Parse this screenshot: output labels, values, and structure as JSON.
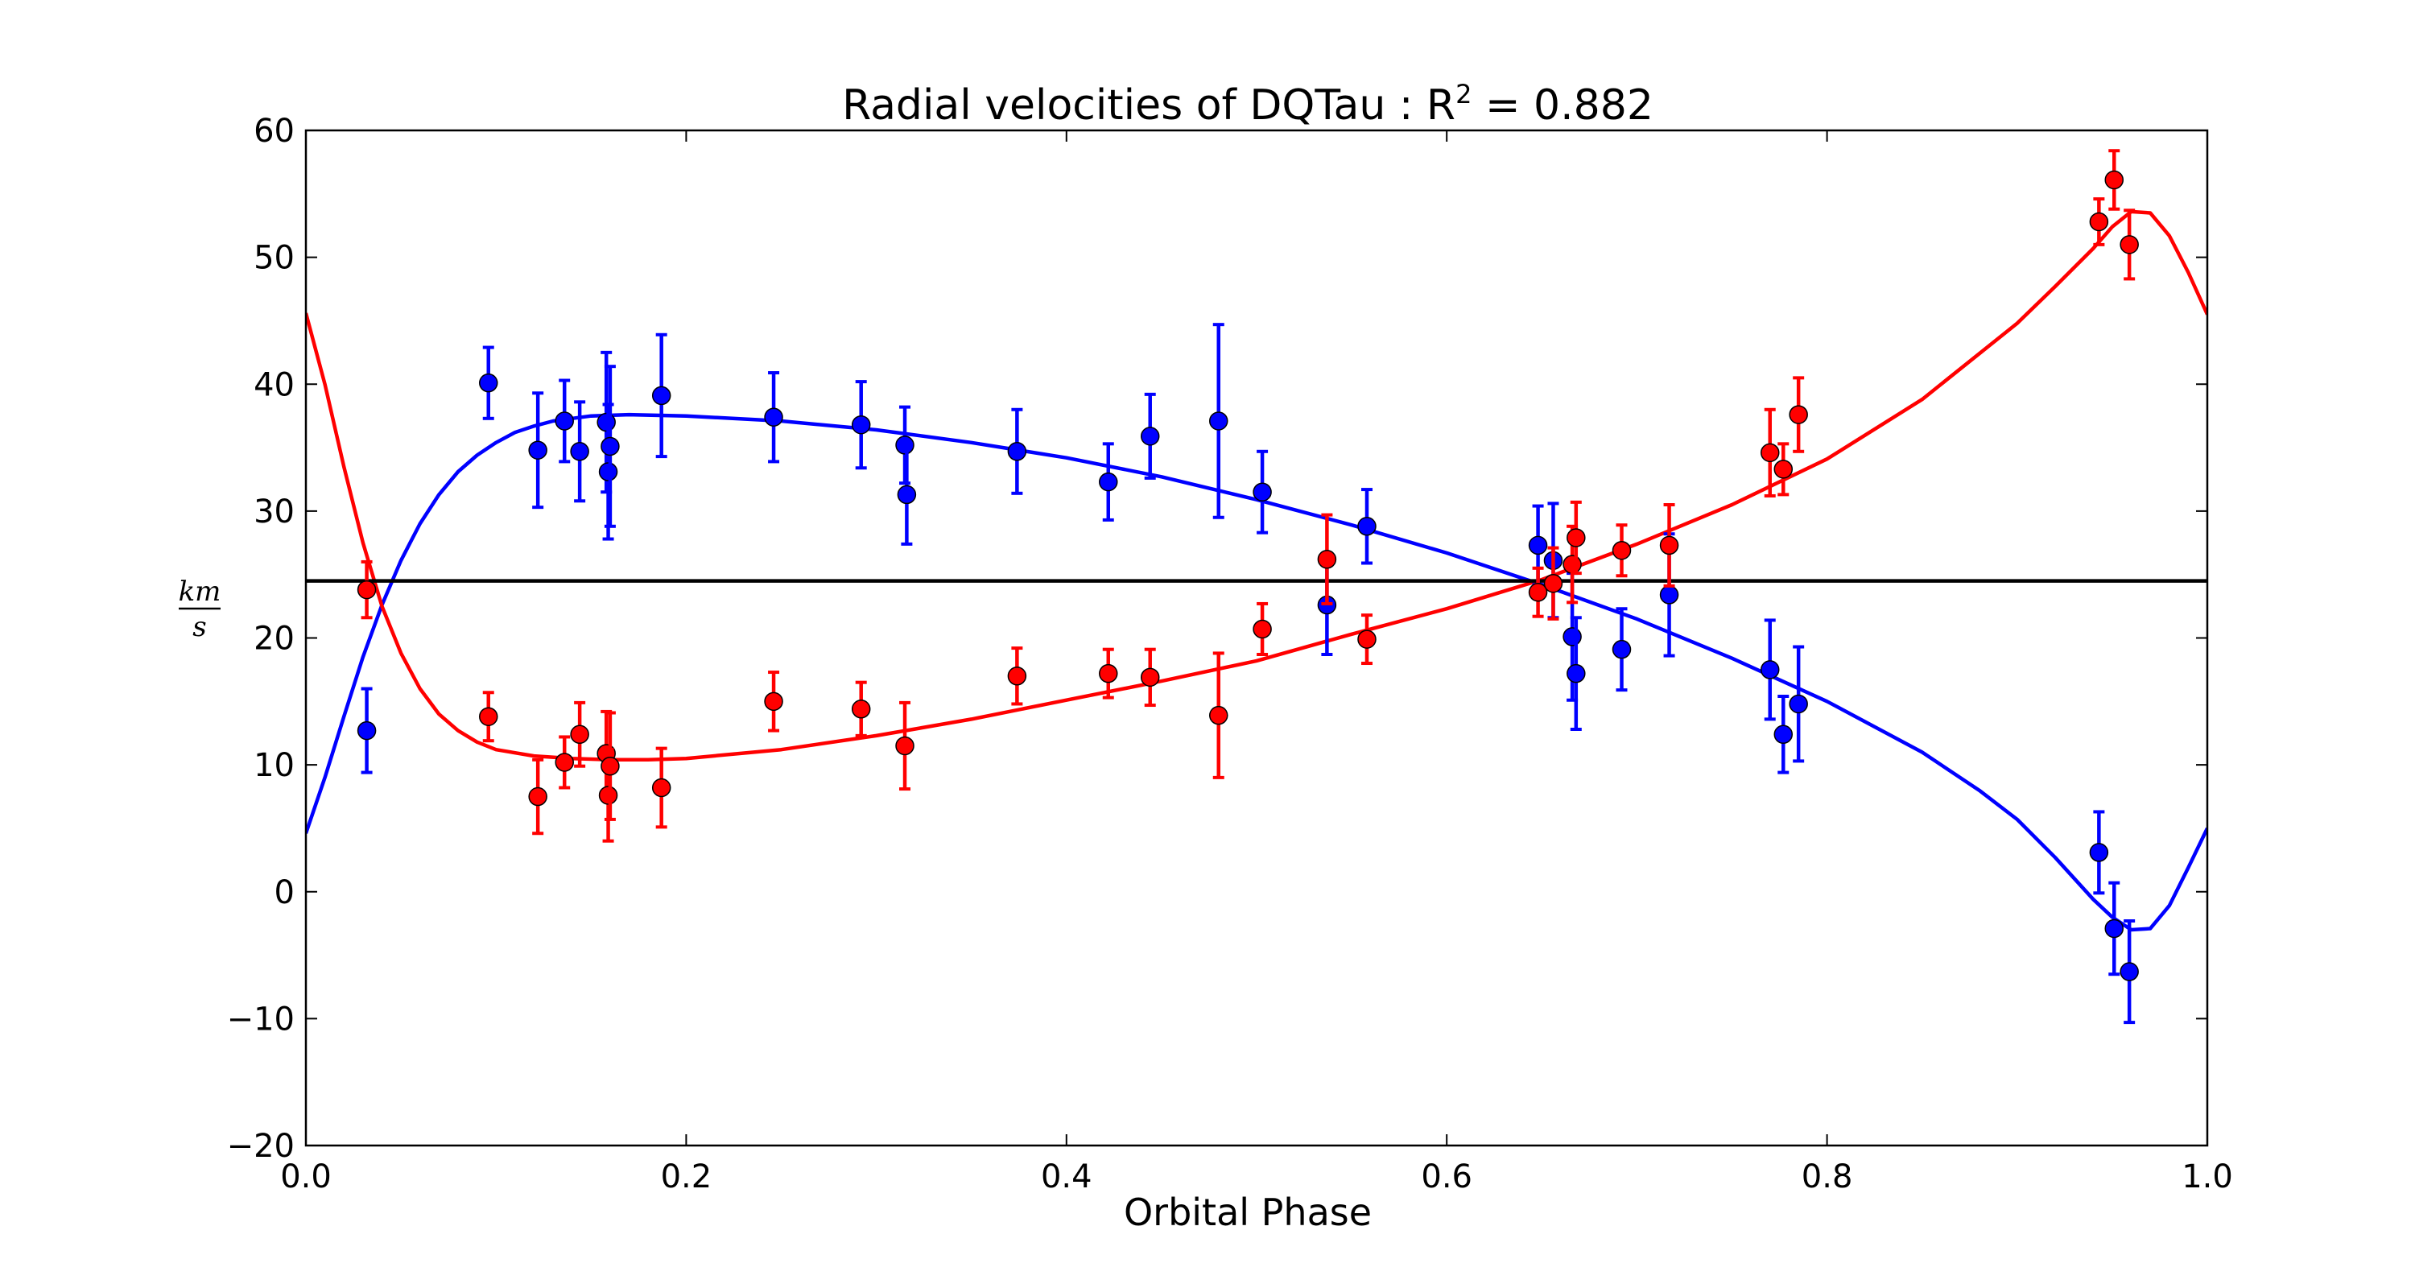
{
  "chart_data": {
    "type": "scatter",
    "title": "Radial velocities of DQTau : R",
    "title_superscript": "2",
    "title_value": " = 0.882",
    "xlabel": "Orbital Phase",
    "ylabel_numerator": "km",
    "ylabel_denominator": "s",
    "xlim": [
      0.0,
      1.0
    ],
    "ylim": [
      -20,
      60
    ],
    "x_ticks": [
      0.0,
      0.2,
      0.4,
      0.6,
      0.8,
      1.0
    ],
    "x_tick_labels": [
      "0.0",
      "0.2",
      "0.4",
      "0.6",
      "0.8",
      "1.0"
    ],
    "y_ticks": [
      -20,
      -10,
      0,
      10,
      20,
      30,
      40,
      50,
      60
    ],
    "y_tick_labels": [
      "−20",
      "−10",
      "0",
      "10",
      "20",
      "30",
      "40",
      "50",
      "60"
    ],
    "grid": false,
    "systemic_velocity": 24.5,
    "series": [
      {
        "color": "#0000ff",
        "points": [
          {
            "x": 0.032,
            "y": 12.7,
            "err": 3.3
          },
          {
            "x": 0.096,
            "y": 40.1,
            "err": 2.8
          },
          {
            "x": 0.122,
            "y": 34.8,
            "err": 4.5
          },
          {
            "x": 0.136,
            "y": 37.1,
            "err": 3.2
          },
          {
            "x": 0.144,
            "y": 34.7,
            "err": 3.9
          },
          {
            "x": 0.158,
            "y": 37.0,
            "err": 5.5
          },
          {
            "x": 0.159,
            "y": 33.1,
            "err": 5.3
          },
          {
            "x": 0.16,
            "y": 35.1,
            "err": 6.3
          },
          {
            "x": 0.187,
            "y": 39.1,
            "err": 4.8
          },
          {
            "x": 0.246,
            "y": 37.4,
            "err": 3.5
          },
          {
            "x": 0.292,
            "y": 36.8,
            "err": 3.4
          },
          {
            "x": 0.315,
            "y": 35.2,
            "err": 3.0
          },
          {
            "x": 0.316,
            "y": 31.3,
            "err": 3.9
          },
          {
            "x": 0.374,
            "y": 34.7,
            "err": 3.3
          },
          {
            "x": 0.422,
            "y": 32.3,
            "err": 3.0
          },
          {
            "x": 0.444,
            "y": 35.9,
            "err": 3.3
          },
          {
            "x": 0.48,
            "y": 37.1,
            "err": 7.6
          },
          {
            "x": 0.503,
            "y": 31.5,
            "err": 3.2
          },
          {
            "x": 0.537,
            "y": 22.6,
            "err": 3.9
          },
          {
            "x": 0.558,
            "y": 28.8,
            "err": 2.9
          },
          {
            "x": 0.648,
            "y": 27.3,
            "err": 3.1
          },
          {
            "x": 0.656,
            "y": 26.1,
            "err": 4.5
          },
          {
            "x": 0.666,
            "y": 20.1,
            "err": 5.0
          },
          {
            "x": 0.668,
            "y": 17.2,
            "err": 4.4
          },
          {
            "x": 0.692,
            "y": 19.1,
            "err": 3.2
          },
          {
            "x": 0.717,
            "y": 23.4,
            "err": 4.8
          },
          {
            "x": 0.77,
            "y": 17.5,
            "err": 3.9
          },
          {
            "x": 0.777,
            "y": 12.4,
            "err": 3.0
          },
          {
            "x": 0.785,
            "y": 14.8,
            "err": 4.5
          },
          {
            "x": 0.943,
            "y": 3.1,
            "err": 3.2
          },
          {
            "x": 0.951,
            "y": -2.9,
            "err": 3.6
          },
          {
            "x": 0.959,
            "y": -6.3,
            "err": 4.0
          }
        ]
      },
      {
        "color": "#ff0000",
        "points": [
          {
            "x": 0.032,
            "y": 23.8,
            "err": 2.2
          },
          {
            "x": 0.096,
            "y": 13.8,
            "err": 1.9
          },
          {
            "x": 0.122,
            "y": 7.5,
            "err": 2.9
          },
          {
            "x": 0.136,
            "y": 10.2,
            "err": 2.0
          },
          {
            "x": 0.144,
            "y": 12.4,
            "err": 2.5
          },
          {
            "x": 0.158,
            "y": 10.9,
            "err": 3.3
          },
          {
            "x": 0.159,
            "y": 7.6,
            "err": 3.6
          },
          {
            "x": 0.16,
            "y": 9.9,
            "err": 4.2
          },
          {
            "x": 0.187,
            "y": 8.2,
            "err": 3.1
          },
          {
            "x": 0.246,
            "y": 15.0,
            "err": 2.3
          },
          {
            "x": 0.292,
            "y": 14.4,
            "err": 2.1
          },
          {
            "x": 0.315,
            "y": 11.5,
            "err": 3.4
          },
          {
            "x": 0.374,
            "y": 17.0,
            "err": 2.2
          },
          {
            "x": 0.422,
            "y": 17.2,
            "err": 1.9
          },
          {
            "x": 0.444,
            "y": 16.9,
            "err": 2.2
          },
          {
            "x": 0.48,
            "y": 13.9,
            "err": 4.9
          },
          {
            "x": 0.503,
            "y": 20.7,
            "err": 2.0
          },
          {
            "x": 0.537,
            "y": 26.2,
            "err": 3.5
          },
          {
            "x": 0.558,
            "y": 19.9,
            "err": 1.9
          },
          {
            "x": 0.648,
            "y": 23.6,
            "err": 1.9
          },
          {
            "x": 0.656,
            "y": 24.3,
            "err": 2.8
          },
          {
            "x": 0.666,
            "y": 25.8,
            "err": 3.0
          },
          {
            "x": 0.668,
            "y": 27.9,
            "err": 2.8
          },
          {
            "x": 0.692,
            "y": 26.9,
            "err": 2.0
          },
          {
            "x": 0.717,
            "y": 27.3,
            "err": 3.2
          },
          {
            "x": 0.77,
            "y": 34.6,
            "err": 3.4
          },
          {
            "x": 0.777,
            "y": 33.3,
            "err": 2.0
          },
          {
            "x": 0.785,
            "y": 37.6,
            "err": 2.9
          },
          {
            "x": 0.943,
            "y": 52.8,
            "err": 1.8
          },
          {
            "x": 0.951,
            "y": 56.1,
            "err": 2.3
          },
          {
            "x": 0.959,
            "y": 51.0,
            "err": 2.7
          }
        ]
      }
    ],
    "fit_curves": [
      {
        "color": "#0000ff",
        "points": [
          [
            0.0,
            4.6
          ],
          [
            0.01,
            9.0
          ],
          [
            0.02,
            13.8
          ],
          [
            0.03,
            18.5
          ],
          [
            0.04,
            22.6
          ],
          [
            0.05,
            26.1
          ],
          [
            0.06,
            29.0
          ],
          [
            0.07,
            31.3
          ],
          [
            0.08,
            33.1
          ],
          [
            0.09,
            34.4
          ],
          [
            0.1,
            35.4
          ],
          [
            0.11,
            36.2
          ],
          [
            0.12,
            36.7
          ],
          [
            0.13,
            37.1
          ],
          [
            0.14,
            37.3
          ],
          [
            0.15,
            37.5
          ],
          [
            0.17,
            37.6
          ],
          [
            0.2,
            37.5
          ],
          [
            0.25,
            37.1
          ],
          [
            0.3,
            36.4
          ],
          [
            0.35,
            35.4
          ],
          [
            0.4,
            34.2
          ],
          [
            0.45,
            32.7
          ],
          [
            0.5,
            30.9
          ],
          [
            0.55,
            28.9
          ],
          [
            0.6,
            26.7
          ],
          [
            0.65,
            24.2
          ],
          [
            0.7,
            21.5
          ],
          [
            0.75,
            18.4
          ],
          [
            0.8,
            15.0
          ],
          [
            0.85,
            11.0
          ],
          [
            0.88,
            8.0
          ],
          [
            0.9,
            5.7
          ],
          [
            0.92,
            2.7
          ],
          [
            0.94,
            -0.6
          ],
          [
            0.95,
            -2.0
          ],
          [
            0.96,
            -3.0
          ],
          [
            0.97,
            -2.9
          ],
          [
            0.98,
            -1.1
          ],
          [
            0.99,
            1.9
          ],
          [
            1.0,
            5.0
          ]
        ]
      },
      {
        "color": "#ff0000",
        "points": [
          [
            0.0,
            45.6
          ],
          [
            0.01,
            40.0
          ],
          [
            0.02,
            33.5
          ],
          [
            0.03,
            27.5
          ],
          [
            0.04,
            22.5
          ],
          [
            0.05,
            18.8
          ],
          [
            0.06,
            16.0
          ],
          [
            0.07,
            14.0
          ],
          [
            0.08,
            12.7
          ],
          [
            0.09,
            11.8
          ],
          [
            0.1,
            11.2
          ],
          [
            0.12,
            10.7
          ],
          [
            0.14,
            10.5
          ],
          [
            0.16,
            10.4
          ],
          [
            0.18,
            10.4
          ],
          [
            0.2,
            10.5
          ],
          [
            0.25,
            11.2
          ],
          [
            0.3,
            12.3
          ],
          [
            0.35,
            13.6
          ],
          [
            0.4,
            15.1
          ],
          [
            0.45,
            16.6
          ],
          [
            0.5,
            18.2
          ],
          [
            0.55,
            20.3
          ],
          [
            0.6,
            22.3
          ],
          [
            0.65,
            24.6
          ],
          [
            0.7,
            27.4
          ],
          [
            0.75,
            30.5
          ],
          [
            0.8,
            34.1
          ],
          [
            0.85,
            38.8
          ],
          [
            0.9,
            44.8
          ],
          [
            0.92,
            47.7
          ],
          [
            0.94,
            50.7
          ],
          [
            0.95,
            52.4
          ],
          [
            0.96,
            53.6
          ],
          [
            0.97,
            53.5
          ],
          [
            0.98,
            51.7
          ],
          [
            0.99,
            48.8
          ],
          [
            1.0,
            45.5
          ]
        ]
      }
    ]
  }
}
